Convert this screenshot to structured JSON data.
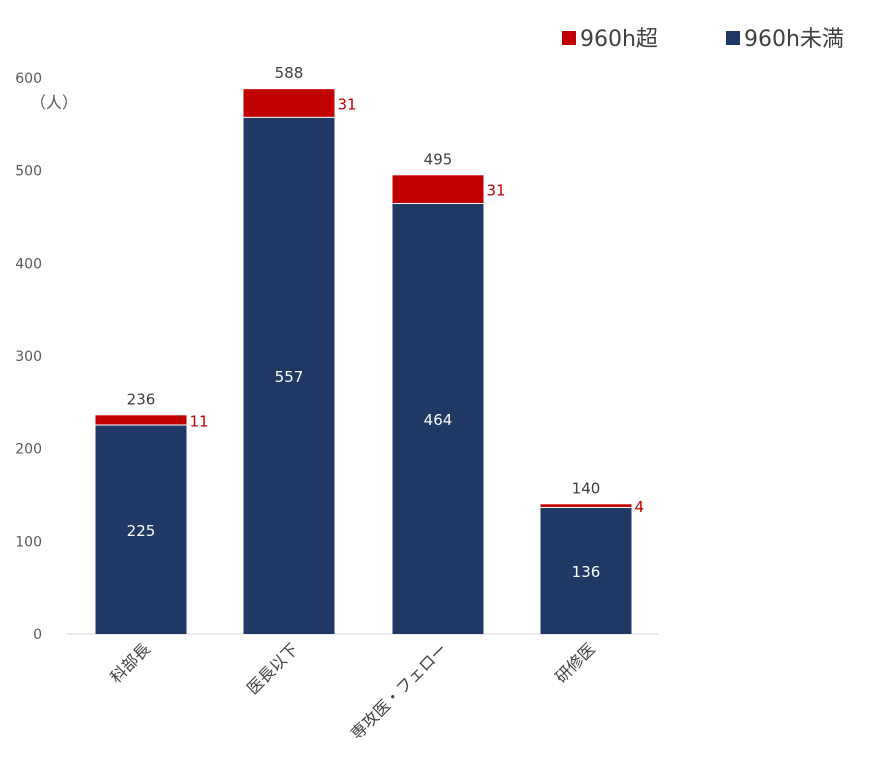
{
  "chart_data": {
    "type": "bar",
    "stacked": true,
    "categories": [
      "科部長",
      "医長以下",
      "専攻医・フェロー",
      "研修医"
    ],
    "series": [
      {
        "name": "960h未満",
        "color": "#1f3864",
        "values": [
          225,
          557,
          464,
          136
        ]
      },
      {
        "name": "960h超",
        "color": "#c00000",
        "values": [
          11,
          31,
          31,
          4
        ]
      }
    ],
    "totals": [
      236,
      588,
      495,
      140
    ],
    "ylabel": "（人）",
    "ylim": [
      0,
      600
    ],
    "yticks": [
      0,
      100,
      200,
      300,
      400,
      500,
      600
    ],
    "grid": false,
    "legend": {
      "placement": "top-right",
      "order": [
        "960h超",
        "960h未満"
      ]
    }
  }
}
